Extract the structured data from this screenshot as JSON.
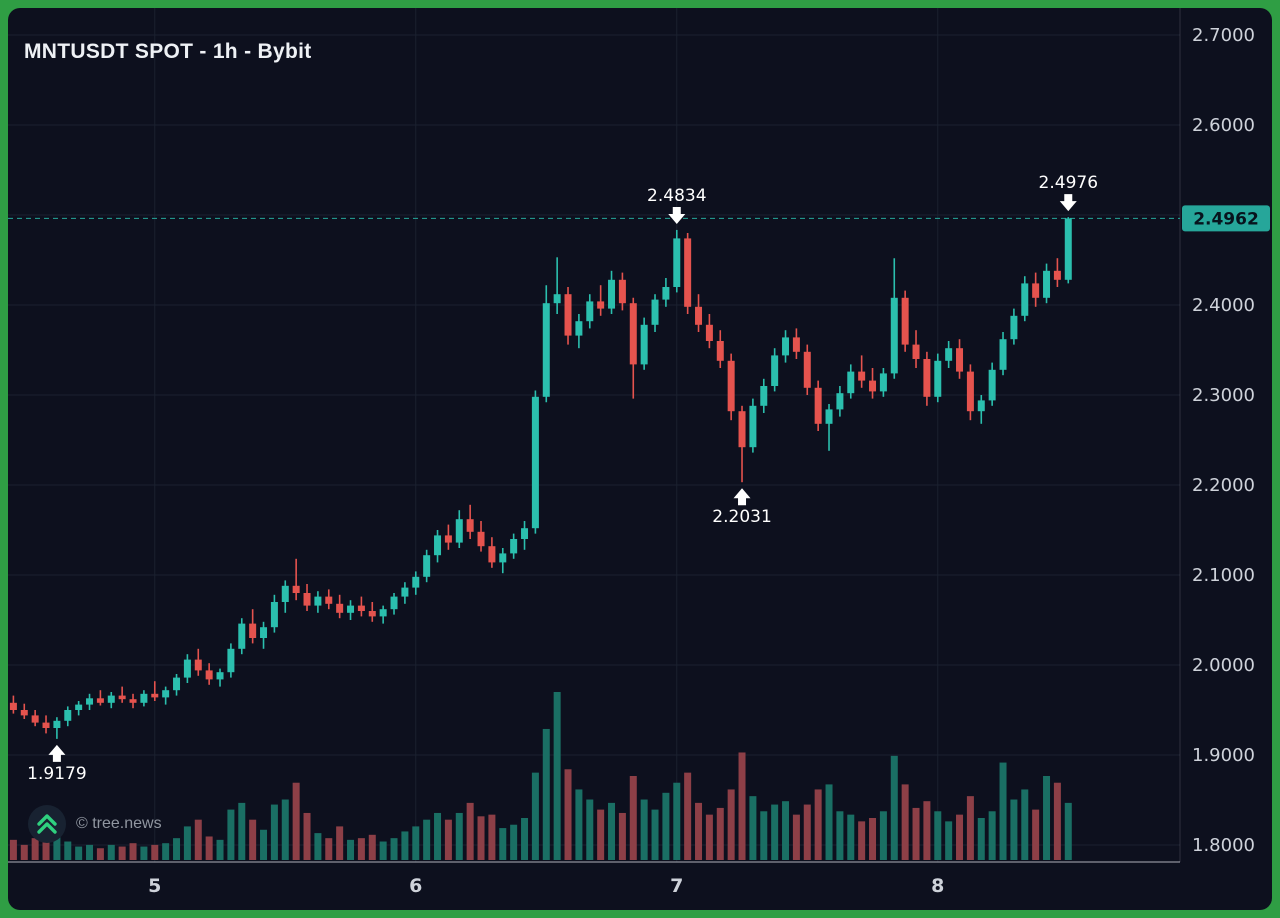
{
  "header": {
    "title": "MNTUSDT SPOT - 1h - Bybit"
  },
  "watermark": {
    "text": "© tree.news"
  },
  "chart_data": {
    "type": "candlestick",
    "title": "MNTUSDT SPOT - 1h - Bybit",
    "symbol": "MNTUSDT",
    "market": "SPOT",
    "interval": "1h",
    "exchange": "Bybit",
    "last_price": 2.4962,
    "format": "ohlc",
    "price_axis": {
      "min": 1.78,
      "max": 2.72,
      "ticks": [
        {
          "value": 2.7,
          "label": "2.7000"
        },
        {
          "value": 2.6,
          "label": "2.6000"
        },
        {
          "value": 2.4,
          "label": "2.4000"
        },
        {
          "value": 2.3,
          "label": "2.3000"
        },
        {
          "value": 2.2,
          "label": "2.2000"
        },
        {
          "value": 2.1,
          "label": "2.1000"
        },
        {
          "value": 2.0,
          "label": "2.0000"
        },
        {
          "value": 1.9,
          "label": "1.9000"
        },
        {
          "value": 1.8,
          "label": "1.8000"
        }
      ],
      "grid_values": [
        2.7,
        2.6,
        2.5,
        2.4,
        2.3,
        2.2,
        2.1,
        2.0,
        1.9,
        1.8
      ]
    },
    "time_axis": {
      "ticks": [
        {
          "label": "5",
          "index": 13
        },
        {
          "label": "6",
          "index": 37
        },
        {
          "label": "7",
          "index": 61
        },
        {
          "label": "8",
          "index": 85
        }
      ]
    },
    "annotations": [
      {
        "text": "1.9179",
        "kind": "trough",
        "index": 4,
        "price": 1.9179
      },
      {
        "text": "2.4834",
        "kind": "peak",
        "index": 61,
        "price": 2.4834
      },
      {
        "text": "2.2031",
        "kind": "trough",
        "index": 67,
        "price": 2.2031
      },
      {
        "text": "2.4976",
        "kind": "peak",
        "index": 97,
        "price": 2.4976
      }
    ],
    "candles": [
      [
        1.958,
        1.966,
        1.946,
        1.95
      ],
      [
        1.95,
        1.957,
        1.94,
        1.944
      ],
      [
        1.944,
        1.95,
        1.932,
        1.936
      ],
      [
        1.936,
        1.944,
        1.924,
        1.93
      ],
      [
        1.93,
        1.942,
        1.9179,
        1.938
      ],
      [
        1.938,
        1.954,
        1.932,
        1.95
      ],
      [
        1.95,
        1.96,
        1.944,
        1.956
      ],
      [
        1.956,
        1.968,
        1.95,
        1.963
      ],
      [
        1.963,
        1.972,
        1.955,
        1.958
      ],
      [
        1.958,
        1.97,
        1.952,
        1.966
      ],
      [
        1.966,
        1.976,
        1.958,
        1.962
      ],
      [
        1.962,
        1.968,
        1.952,
        1.958
      ],
      [
        1.958,
        1.972,
        1.954,
        1.968
      ],
      [
        1.968,
        1.982,
        1.96,
        1.964
      ],
      [
        1.964,
        1.976,
        1.956,
        1.972
      ],
      [
        1.972,
        1.99,
        1.966,
        1.986
      ],
      [
        1.986,
        2.012,
        1.98,
        2.006
      ],
      [
        2.006,
        2.018,
        1.988,
        1.994
      ],
      [
        1.994,
        2.002,
        1.978,
        1.984
      ],
      [
        1.984,
        1.996,
        1.976,
        1.992
      ],
      [
        1.992,
        2.024,
        1.986,
        2.018
      ],
      [
        2.018,
        2.052,
        2.012,
        2.046
      ],
      [
        2.046,
        2.062,
        2.024,
        2.03
      ],
      [
        2.03,
        2.048,
        2.018,
        2.042
      ],
      [
        2.042,
        2.078,
        2.036,
        2.07
      ],
      [
        2.07,
        2.094,
        2.058,
        2.088
      ],
      [
        2.088,
        2.118,
        2.072,
        2.08
      ],
      [
        2.08,
        2.09,
        2.06,
        2.066
      ],
      [
        2.066,
        2.082,
        2.058,
        2.076
      ],
      [
        2.076,
        2.084,
        2.062,
        2.068
      ],
      [
        2.068,
        2.078,
        2.052,
        2.058
      ],
      [
        2.058,
        2.072,
        2.05,
        2.066
      ],
      [
        2.066,
        2.076,
        2.054,
        2.06
      ],
      [
        2.06,
        2.07,
        2.048,
        2.054
      ],
      [
        2.054,
        2.066,
        2.046,
        2.062
      ],
      [
        2.062,
        2.08,
        2.056,
        2.076
      ],
      [
        2.076,
        2.092,
        2.068,
        2.086
      ],
      [
        2.086,
        2.104,
        2.078,
        2.098
      ],
      [
        2.098,
        2.128,
        2.092,
        2.122
      ],
      [
        2.122,
        2.15,
        2.114,
        2.144
      ],
      [
        2.144,
        2.156,
        2.128,
        2.136
      ],
      [
        2.136,
        2.172,
        2.13,
        2.162
      ],
      [
        2.162,
        2.178,
        2.14,
        2.148
      ],
      [
        2.148,
        2.16,
        2.126,
        2.132
      ],
      [
        2.132,
        2.142,
        2.108,
        2.114
      ],
      [
        2.114,
        2.13,
        2.102,
        2.124
      ],
      [
        2.124,
        2.146,
        2.118,
        2.14
      ],
      [
        2.14,
        2.16,
        2.128,
        2.152
      ],
      [
        2.152,
        2.305,
        2.146,
        2.298
      ],
      [
        2.298,
        2.422,
        2.292,
        2.402
      ],
      [
        2.402,
        2.453,
        2.39,
        2.412
      ],
      [
        2.412,
        2.42,
        2.356,
        2.366
      ],
      [
        2.366,
        2.39,
        2.352,
        2.382
      ],
      [
        2.382,
        2.412,
        2.374,
        2.404
      ],
      [
        2.404,
        2.422,
        2.388,
        2.396
      ],
      [
        2.396,
        2.438,
        2.39,
        2.428
      ],
      [
        2.428,
        2.436,
        2.394,
        2.402
      ],
      [
        2.402,
        2.408,
        2.296,
        2.334
      ],
      [
        2.334,
        2.386,
        2.328,
        2.378
      ],
      [
        2.378,
        2.412,
        2.37,
        2.406
      ],
      [
        2.406,
        2.43,
        2.398,
        2.42
      ],
      [
        2.42,
        2.4834,
        2.414,
        2.474
      ],
      [
        2.474,
        2.48,
        2.39,
        2.398
      ],
      [
        2.398,
        2.412,
        2.37,
        2.378
      ],
      [
        2.378,
        2.39,
        2.352,
        2.36
      ],
      [
        2.36,
        2.372,
        2.33,
        2.338
      ],
      [
        2.338,
        2.346,
        2.272,
        2.282
      ],
      [
        2.282,
        2.288,
        2.2031,
        2.242
      ],
      [
        2.242,
        2.296,
        2.236,
        2.288
      ],
      [
        2.288,
        2.318,
        2.28,
        2.31
      ],
      [
        2.31,
        2.352,
        2.304,
        2.344
      ],
      [
        2.344,
        2.372,
        2.336,
        2.364
      ],
      [
        2.364,
        2.374,
        2.34,
        2.348
      ],
      [
        2.348,
        2.356,
        2.3,
        2.308
      ],
      [
        2.308,
        2.316,
        2.26,
        2.268
      ],
      [
        2.268,
        2.29,
        2.238,
        2.284
      ],
      [
        2.284,
        2.31,
        2.276,
        2.302
      ],
      [
        2.302,
        2.334,
        2.296,
        2.326
      ],
      [
        2.326,
        2.344,
        2.308,
        2.316
      ],
      [
        2.316,
        2.33,
        2.296,
        2.304
      ],
      [
        2.304,
        2.33,
        2.298,
        2.324
      ],
      [
        2.324,
        2.452,
        2.318,
        2.408
      ],
      [
        2.408,
        2.416,
        2.348,
        2.356
      ],
      [
        2.356,
        2.372,
        2.33,
        2.34
      ],
      [
        2.34,
        2.348,
        2.288,
        2.298
      ],
      [
        2.298,
        2.346,
        2.292,
        2.338
      ],
      [
        2.338,
        2.36,
        2.33,
        2.352
      ],
      [
        2.352,
        2.362,
        2.318,
        2.326
      ],
      [
        2.326,
        2.334,
        2.272,
        2.282
      ],
      [
        2.282,
        2.3,
        2.268,
        2.294
      ],
      [
        2.294,
        2.336,
        2.288,
        2.328
      ],
      [
        2.328,
        2.37,
        2.322,
        2.362
      ],
      [
        2.362,
        2.396,
        2.356,
        2.388
      ],
      [
        2.388,
        2.432,
        2.382,
        2.424
      ],
      [
        2.424,
        2.436,
        2.398,
        2.408
      ],
      [
        2.408,
        2.446,
        2.402,
        2.438
      ],
      [
        2.438,
        2.452,
        2.42,
        2.428
      ],
      [
        2.428,
        2.4976,
        2.424,
        2.4962
      ]
    ],
    "volumes": [
      0.12,
      0.09,
      0.13,
      0.11,
      0.17,
      0.11,
      0.08,
      0.09,
      0.07,
      0.09,
      0.08,
      0.1,
      0.08,
      0.09,
      0.1,
      0.13,
      0.2,
      0.24,
      0.14,
      0.12,
      0.3,
      0.34,
      0.24,
      0.18,
      0.33,
      0.36,
      0.46,
      0.28,
      0.16,
      0.13,
      0.2,
      0.12,
      0.13,
      0.15,
      0.11,
      0.13,
      0.17,
      0.2,
      0.24,
      0.28,
      0.24,
      0.28,
      0.34,
      0.26,
      0.27,
      0.19,
      0.21,
      0.25,
      0.52,
      0.78,
      1.0,
      0.54,
      0.42,
      0.36,
      0.3,
      0.34,
      0.28,
      0.5,
      0.36,
      0.3,
      0.4,
      0.46,
      0.52,
      0.34,
      0.27,
      0.31,
      0.42,
      0.64,
      0.38,
      0.29,
      0.33,
      0.35,
      0.27,
      0.33,
      0.42,
      0.45,
      0.29,
      0.27,
      0.23,
      0.25,
      0.29,
      0.62,
      0.45,
      0.31,
      0.35,
      0.29,
      0.23,
      0.27,
      0.38,
      0.25,
      0.29,
      0.58,
      0.36,
      0.42,
      0.3,
      0.5,
      0.46,
      0.34
    ],
    "colors": {
      "frame_green": "#2f9e44",
      "background": "#0d101e",
      "grid": "#1b2130",
      "axis_text": "#ced2da",
      "axis_separator": "#aeb1ba",
      "candle_up": "#2bbfae",
      "candle_down": "#e5534e",
      "volume_up": "#1a6f64",
      "volume_down": "#8d3f47",
      "price_line": "#26a69a",
      "badge_bg": "#26a69a",
      "badge_text": "#07131d",
      "annotation": "#ffffff",
      "title_text": "#eef1f5",
      "watermark_text": "#9096a0",
      "logo_green": "#2fd07f",
      "logo_bg": "#182231"
    }
  }
}
